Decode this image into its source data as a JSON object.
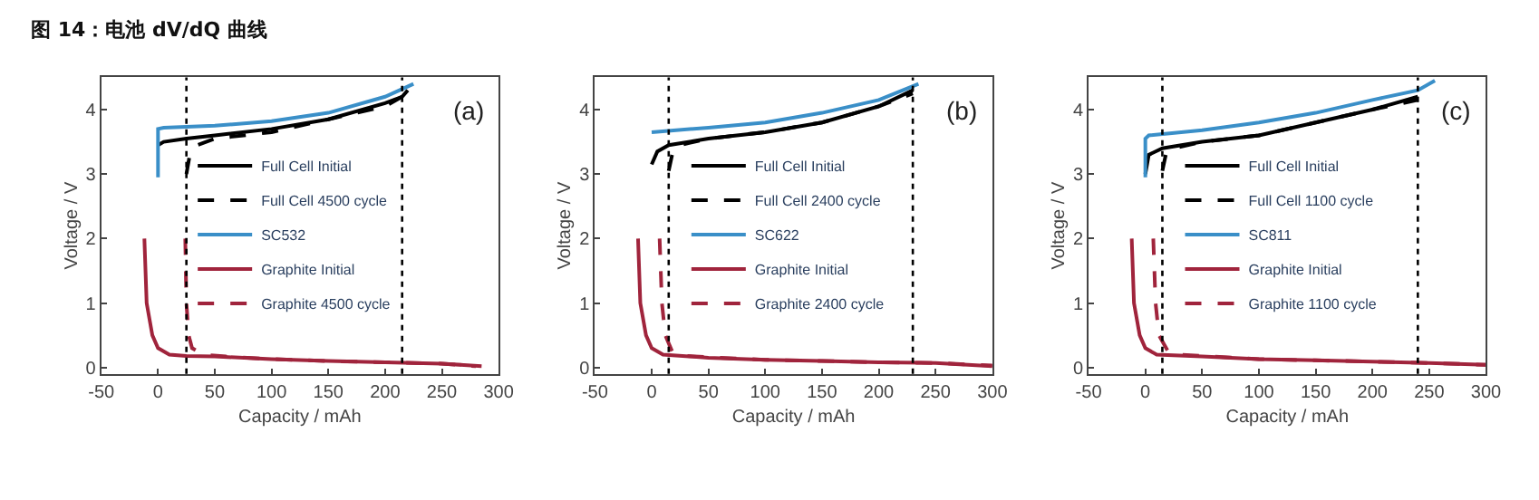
{
  "chart_data": [
    {
      "type": "line",
      "title": "图 14：电池 dV/dQ 曲线",
      "xlabel": "Capacity / mAh",
      "ylabel": "Voltage / V",
      "annotations": [
        "(a)"
      ],
      "xlim": [
        -50,
        300
      ],
      "ylim": [
        -0.1,
        4.5
      ],
      "xticks": [
        -50,
        0,
        50,
        100,
        150,
        200,
        250,
        300
      ],
      "yticks": [
        0,
        1,
        2,
        3,
        4
      ],
      "legend": "left",
      "marker": "none",
      "ref_lines": [
        {
          "axis": "x",
          "value": 25,
          "color": "#000000",
          "line_style": "dotted"
        },
        {
          "axis": "x",
          "value": 215,
          "color": "#000000",
          "line_style": "dotted"
        }
      ],
      "series": [
        {
          "name": "Full Cell Initial",
          "color": "#000000",
          "line_style": "solid",
          "x": [
            0,
            5,
            25,
            50,
            100,
            150,
            200,
            215,
            220
          ],
          "values": [
            3.45,
            3.5,
            3.55,
            3.6,
            3.7,
            3.85,
            4.1,
            4.2,
            4.3
          ]
        },
        {
          "name": "Full Cell 4500 cycle",
          "color": "#000000",
          "line_style": "dashed",
          "x": [
            25,
            28,
            35,
            50,
            100,
            150,
            200,
            215
          ],
          "values": [
            3.0,
            3.3,
            3.45,
            3.55,
            3.65,
            3.85,
            4.05,
            4.2
          ]
        },
        {
          "name": "SC532",
          "color": "#3a8fc8",
          "line_style": "solid",
          "x": [
            0,
            0,
            5,
            50,
            100,
            150,
            200,
            225
          ],
          "values": [
            2.95,
            3.7,
            3.72,
            3.75,
            3.82,
            3.95,
            4.2,
            4.4
          ]
        },
        {
          "name": "Graphite Initial",
          "color": "#a0243c",
          "line_style": "solid",
          "x": [
            -12,
            -10,
            -5,
            0,
            10,
            25,
            50,
            100,
            150,
            200,
            250,
            285
          ],
          "values": [
            2.0,
            1.0,
            0.5,
            0.3,
            0.2,
            0.18,
            0.17,
            0.13,
            0.1,
            0.08,
            0.06,
            0.02
          ]
        },
        {
          "name": "Graphite 4500 cycle",
          "color": "#a0243c",
          "line_style": "dashed",
          "x": [
            24,
            25,
            27,
            30,
            40,
            60,
            100,
            150,
            200,
            250,
            280
          ],
          "values": [
            2.0,
            1.0,
            0.5,
            0.3,
            0.2,
            0.17,
            0.13,
            0.1,
            0.08,
            0.06,
            0.02
          ]
        }
      ]
    },
    {
      "type": "line",
      "xlabel": "Capacity / mAh",
      "ylabel": "Voltage / V",
      "annotations": [
        "(b)"
      ],
      "xlim": [
        -50,
        300
      ],
      "ylim": [
        -0.1,
        4.5
      ],
      "xticks": [
        -50,
        0,
        50,
        100,
        150,
        200,
        250,
        300
      ],
      "yticks": [
        0,
        1,
        2,
        3,
        4
      ],
      "legend": "left",
      "marker": "none",
      "ref_lines": [
        {
          "axis": "x",
          "value": 15,
          "color": "#000000",
          "line_style": "dotted"
        },
        {
          "axis": "x",
          "value": 230,
          "color": "#000000",
          "line_style": "dotted"
        }
      ],
      "series": [
        {
          "name": "Full Cell Initial",
          "color": "#000000",
          "line_style": "solid",
          "x": [
            0,
            5,
            15,
            50,
            100,
            150,
            200,
            230
          ],
          "values": [
            3.15,
            3.35,
            3.45,
            3.55,
            3.65,
            3.8,
            4.05,
            4.3
          ]
        },
        {
          "name": "Full Cell 2400 cycle",
          "color": "#000000",
          "line_style": "dashed",
          "x": [
            15,
            18,
            25,
            50,
            100,
            150,
            200,
            230
          ],
          "values": [
            3.05,
            3.3,
            3.45,
            3.55,
            3.65,
            3.8,
            4.05,
            4.25
          ]
        },
        {
          "name": "SC622",
          "color": "#3a8fc8",
          "line_style": "solid",
          "x": [
            0,
            50,
            100,
            150,
            200,
            235
          ],
          "values": [
            3.65,
            3.72,
            3.8,
            3.95,
            4.15,
            4.4
          ]
        },
        {
          "name": "Graphite Initial",
          "color": "#a0243c",
          "line_style": "solid",
          "x": [
            -12,
            -10,
            -5,
            0,
            10,
            50,
            100,
            150,
            200,
            250,
            300
          ],
          "values": [
            2.0,
            1.0,
            0.5,
            0.3,
            0.2,
            0.15,
            0.12,
            0.1,
            0.08,
            0.07,
            0.02
          ]
        },
        {
          "name": "Graphite 2400 cycle",
          "color": "#a0243c",
          "line_style": "dashed",
          "x": [
            7,
            9,
            12,
            18,
            30,
            60,
            100,
            150,
            200,
            250,
            300
          ],
          "values": [
            2.0,
            1.0,
            0.5,
            0.25,
            0.18,
            0.15,
            0.12,
            0.1,
            0.08,
            0.07,
            0.03
          ]
        }
      ]
    },
    {
      "type": "line",
      "xlabel": "Capacity / mAh",
      "ylabel": "Voltage / V",
      "annotations": [
        "(c)"
      ],
      "xlim": [
        -50,
        300
      ],
      "ylim": [
        -0.1,
        4.5
      ],
      "xticks": [
        -50,
        0,
        50,
        100,
        150,
        200,
        250,
        300
      ],
      "yticks": [
        0,
        1,
        2,
        3,
        4
      ],
      "legend": "left",
      "marker": "none",
      "ref_lines": [
        {
          "axis": "x",
          "value": 15,
          "color": "#000000",
          "line_style": "dotted"
        },
        {
          "axis": "x",
          "value": 240,
          "color": "#000000",
          "line_style": "dotted"
        }
      ],
      "series": [
        {
          "name": "Full Cell Initial",
          "color": "#000000",
          "line_style": "solid",
          "x": [
            0,
            3,
            15,
            50,
            100,
            150,
            200,
            240
          ],
          "values": [
            3.0,
            3.3,
            3.4,
            3.5,
            3.6,
            3.8,
            4.0,
            4.2
          ]
        },
        {
          "name": "Full Cell 1100 cycle",
          "color": "#000000",
          "line_style": "dashed",
          "x": [
            15,
            18,
            25,
            50,
            100,
            150,
            200,
            240
          ],
          "values": [
            3.05,
            3.3,
            3.4,
            3.5,
            3.6,
            3.8,
            4.0,
            4.15
          ]
        },
        {
          "name": "SC811",
          "color": "#3a8fc8",
          "line_style": "solid",
          "x": [
            0,
            0,
            3,
            50,
            100,
            150,
            200,
            240,
            255
          ],
          "values": [
            2.95,
            3.55,
            3.6,
            3.68,
            3.8,
            3.95,
            4.15,
            4.3,
            4.45
          ]
        },
        {
          "name": "Graphite Initial",
          "color": "#a0243c",
          "line_style": "solid",
          "x": [
            -12,
            -10,
            -5,
            0,
            10,
            50,
            100,
            150,
            200,
            250,
            300
          ],
          "values": [
            2.0,
            1.0,
            0.5,
            0.3,
            0.2,
            0.17,
            0.13,
            0.11,
            0.09,
            0.07,
            0.04
          ]
        },
        {
          "name": "Graphite 1100 cycle",
          "color": "#a0243c",
          "line_style": "dashed",
          "x": [
            7,
            9,
            12,
            20,
            30,
            60,
            100,
            150,
            200,
            250,
            300
          ],
          "values": [
            2.0,
            1.0,
            0.5,
            0.25,
            0.2,
            0.17,
            0.13,
            0.11,
            0.09,
            0.07,
            0.04
          ]
        }
      ]
    }
  ]
}
